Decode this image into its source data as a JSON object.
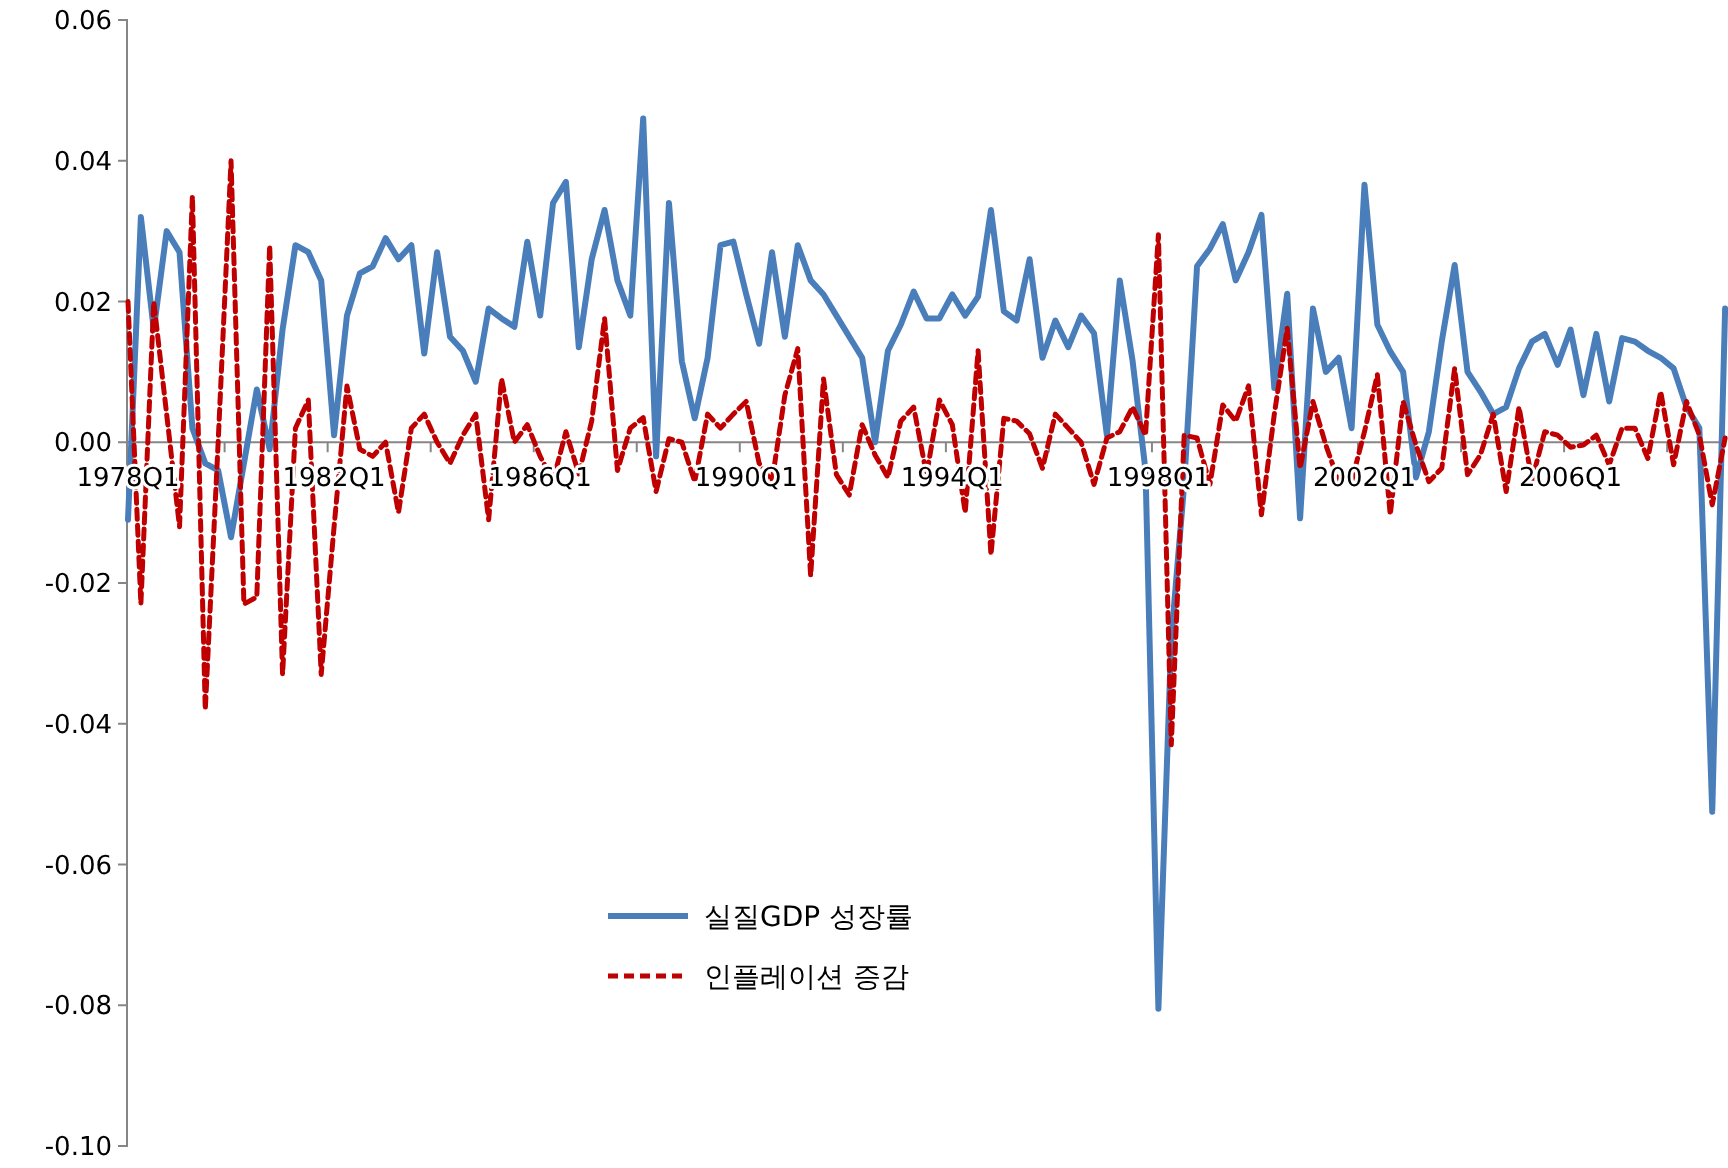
{
  "chart_data": {
    "type": "line",
    "categories": [
      "1978Q1",
      null,
      null,
      null,
      null,
      null,
      null,
      null,
      null,
      null,
      null,
      null,
      null,
      null,
      null,
      null,
      "1982Q1",
      null,
      null,
      null,
      null,
      null,
      null,
      null,
      null,
      null,
      null,
      null,
      null,
      null,
      null,
      null,
      "1986Q1",
      null,
      null,
      null,
      null,
      null,
      null,
      null,
      null,
      null,
      null,
      null,
      null,
      null,
      null,
      null,
      "1990Q1",
      null,
      null,
      null,
      null,
      null,
      null,
      null,
      null,
      null,
      null,
      null,
      null,
      null,
      null,
      null,
      "1994Q1",
      null,
      null,
      null,
      null,
      null,
      null,
      null,
      null,
      null,
      null,
      null,
      null,
      null,
      null,
      null,
      "1998Q1",
      null,
      null,
      null,
      null,
      null,
      null,
      null,
      null,
      null,
      null,
      null,
      null,
      null,
      null,
      null,
      "2002Q1",
      null,
      null,
      null,
      null,
      null,
      null,
      null,
      null,
      null,
      null,
      null,
      null,
      null,
      null,
      null,
      "2006Q1",
      null,
      null,
      null,
      null,
      null,
      null,
      null,
      null,
      null,
      null,
      null,
      null
    ],
    "series": [
      {
        "name": "실질GDP 성장률",
        "color": "#4a7ebb",
        "line_style": "solid",
        "values": [
          -0.011,
          0.032,
          0.016,
          0.03,
          0.027,
          0.002,
          -0.003,
          -0.004,
          -0.0135,
          -0.003,
          0.0075,
          -0.001,
          0.016,
          0.028,
          0.027,
          0.023,
          0.001,
          0.018,
          0.024,
          0.025,
          0.029,
          0.026,
          0.028,
          0.0126,
          0.027,
          0.015,
          0.013,
          0.0086,
          0.019,
          0.0176,
          0.0164,
          0.0285,
          0.018,
          0.034,
          0.037,
          0.0135,
          0.026,
          0.033,
          0.023,
          0.018,
          0.046,
          -0.002,
          0.034,
          0.0115,
          0.0034,
          0.012,
          0.028,
          0.0285,
          0.021,
          0.014,
          0.027,
          0.015,
          0.028,
          0.023,
          0.021,
          0.018,
          0.015,
          0.012,
          0.0,
          0.013,
          0.0167,
          0.0214,
          0.0176,
          0.0176,
          0.021,
          0.018,
          0.0207,
          0.033,
          0.0186,
          0.0173,
          0.026,
          0.012,
          0.0173,
          0.0135,
          0.018,
          0.0155,
          0.001,
          0.023,
          0.0115,
          -0.004,
          -0.0805,
          -0.028,
          -0.006,
          0.025,
          0.0275,
          0.031,
          0.023,
          0.027,
          0.0323,
          0.0077,
          0.0211,
          -0.0108,
          0.019,
          0.01,
          0.012,
          0.002,
          0.0366,
          0.0167,
          0.0129,
          0.01,
          -0.005,
          0.0015,
          0.0143,
          0.0252,
          0.01,
          0.0072,
          0.004,
          0.005,
          0.0105,
          0.0143,
          0.0154,
          0.011,
          0.016,
          0.0067,
          0.0154,
          0.0058,
          0.0148,
          0.0143,
          0.013,
          0.012,
          0.0105,
          0.005,
          0.002,
          -0.0525,
          0.019
        ]
      },
      {
        "name": "인플레이션 증감",
        "color": "#c00000",
        "line_style": "dashed",
        "values": [
          0.02,
          -0.023,
          0.02,
          0.004,
          -0.012,
          0.035,
          -0.038,
          0.0,
          0.04,
          -0.023,
          -0.022,
          0.028,
          -0.033,
          0.002,
          0.006,
          -0.033,
          -0.012,
          0.008,
          -0.001,
          -0.002,
          0.0,
          -0.01,
          0.002,
          0.004,
          0.0,
          -0.003,
          0.001,
          0.004,
          -0.011,
          0.009,
          0.0,
          0.0025,
          -0.002,
          -0.0055,
          0.0015,
          -0.0045,
          0.003,
          0.0176,
          -0.004,
          0.002,
          0.0035,
          -0.007,
          0.0005,
          0.0,
          -0.0056,
          0.004,
          0.002,
          0.004,
          0.0058,
          -0.003,
          -0.0056,
          0.0067,
          0.0133,
          -0.019,
          0.009,
          -0.0046,
          -0.0075,
          0.0025,
          -0.0018,
          -0.005,
          0.003,
          0.005,
          -0.0046,
          0.006,
          0.0025,
          -0.01,
          0.013,
          -0.016,
          0.0034,
          0.003,
          0.0012,
          -0.0037,
          0.004,
          0.002,
          0.0,
          -0.006,
          0.0006,
          0.0015,
          0.005,
          0.001,
          0.0295,
          -0.043,
          0.001,
          0.0006,
          -0.006,
          0.0053,
          0.003,
          0.008,
          -0.0103,
          0.004,
          0.0162,
          -0.0037,
          0.0058,
          -0.0004,
          -0.0056,
          -0.0056,
          0.0015,
          0.0096,
          -0.0103,
          0.0058,
          -0.0004,
          -0.0056,
          -0.0037,
          0.0105,
          -0.0046,
          -0.0018,
          0.004,
          -0.007,
          0.005,
          -0.0054,
          0.0015,
          0.001,
          -0.0007,
          -0.0004,
          0.001,
          -0.0032,
          0.002,
          0.002,
          -0.0023,
          0.0072,
          -0.0032,
          0.0058,
          0.001,
          -0.0089,
          0.0006
        ]
      }
    ],
    "ylim": [
      -0.1,
      0.06
    ],
    "yticks": [
      0.06,
      0.04,
      0.02,
      {
        "value": 0,
        "label": "0.00"
      },
      -0.02,
      -0.04,
      -0.06,
      -0.08,
      {
        "value": -0.1,
        "label": "-0.10"
      }
    ],
    "grid": false,
    "legend": "bottom"
  }
}
